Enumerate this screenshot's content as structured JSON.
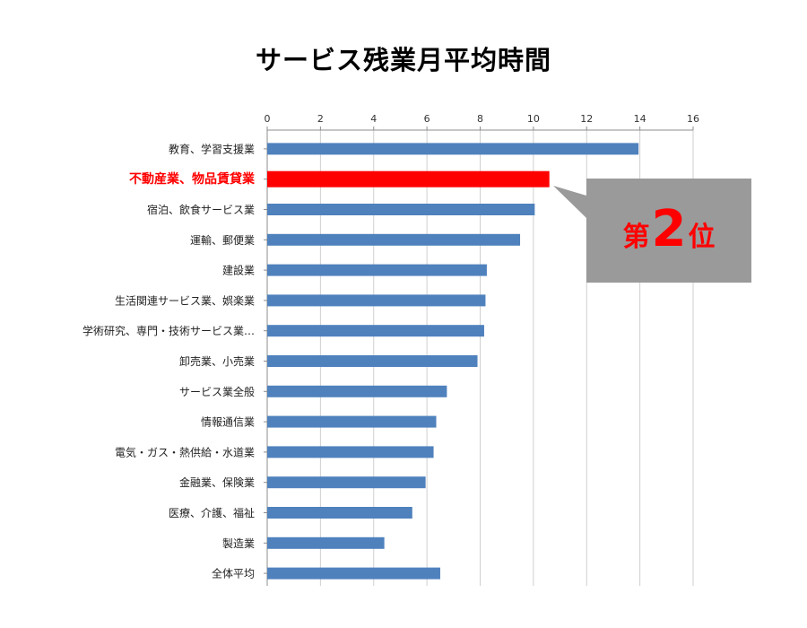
{
  "chart_data": {
    "type": "bar",
    "orientation": "horizontal",
    "title": "サービス残業月平均時間",
    "xlabel": "",
    "ylabel": "",
    "xlim": [
      0,
      16
    ],
    "x_ticks": [
      0,
      2,
      4,
      6,
      8,
      10,
      12,
      14,
      16
    ],
    "grid": true,
    "axis_position": "top",
    "categories": [
      "教育、学習支援業",
      "不動産業、物品賃貸業",
      "宿泊、飲食サービス業",
      "運輸、郵便業",
      "建設業",
      "生活関連サービス業、娯楽業",
      "学術研究、専門・技術サービス業…",
      "卸売業、小売業",
      "サービス業全般",
      "情報通信業",
      "電気・ガス・熱供給・水道業",
      "金融業、保険業",
      "医療、介護、福祉",
      "製造業",
      "全体平均"
    ],
    "values": [
      13.95,
      10.6,
      10.05,
      9.5,
      8.25,
      8.2,
      8.15,
      7.9,
      6.75,
      6.35,
      6.25,
      5.95,
      5.45,
      4.4,
      6.5
    ],
    "highlight_index": 1,
    "bar_color": "#4f81bd",
    "highlight_color": "#ff0000",
    "annotation": {
      "prefix": "第",
      "rank": "2",
      "suffix": "位",
      "box_color": "#9a9a9a",
      "text_color": "#ff0000"
    }
  }
}
